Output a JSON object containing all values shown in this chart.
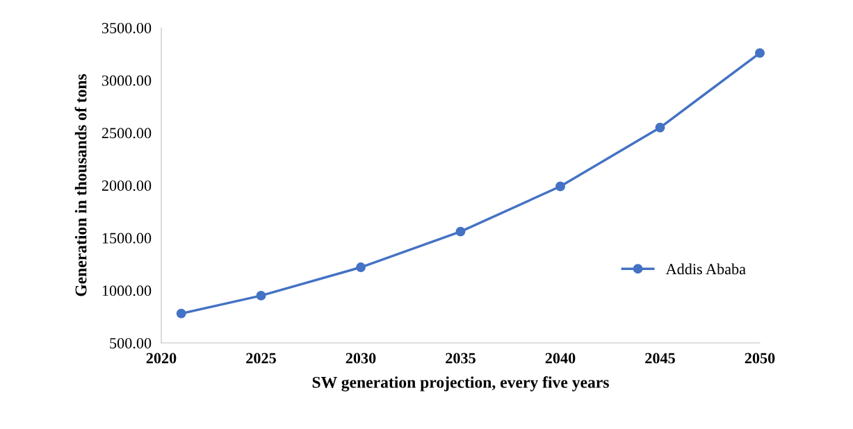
{
  "chart_data": {
    "type": "line",
    "xlabel": "SW generation projection, every five years",
    "ylabel": "Generation in thousands of tons",
    "x": [
      2021,
      2025,
      2030,
      2035,
      2040,
      2045,
      2050
    ],
    "series": [
      {
        "name": "Addis Ababa",
        "color": "#4472c4",
        "values": [
          780,
          950,
          1220,
          1560,
          1990,
          2550,
          3260
        ]
      }
    ],
    "xlim": [
      2020,
      2050
    ],
    "xticks": [
      2020,
      2025,
      2030,
      2035,
      2040,
      2045,
      2050
    ],
    "ylim": [
      500,
      3500
    ],
    "yticks": [
      {
        "value": 500,
        "label": "500.00"
      },
      {
        "value": 1000,
        "label": "1000.00"
      },
      {
        "value": 1500,
        "label": "1500.00"
      },
      {
        "value": 2000,
        "label": "2000.00"
      },
      {
        "value": 2500,
        "label": "2500.00"
      },
      {
        "value": 3000,
        "label": "3000.00"
      },
      {
        "value": 3500,
        "label": "3500.00"
      }
    ],
    "grid": false,
    "legend": "right",
    "marker": "circle",
    "line_style": "solid"
  }
}
